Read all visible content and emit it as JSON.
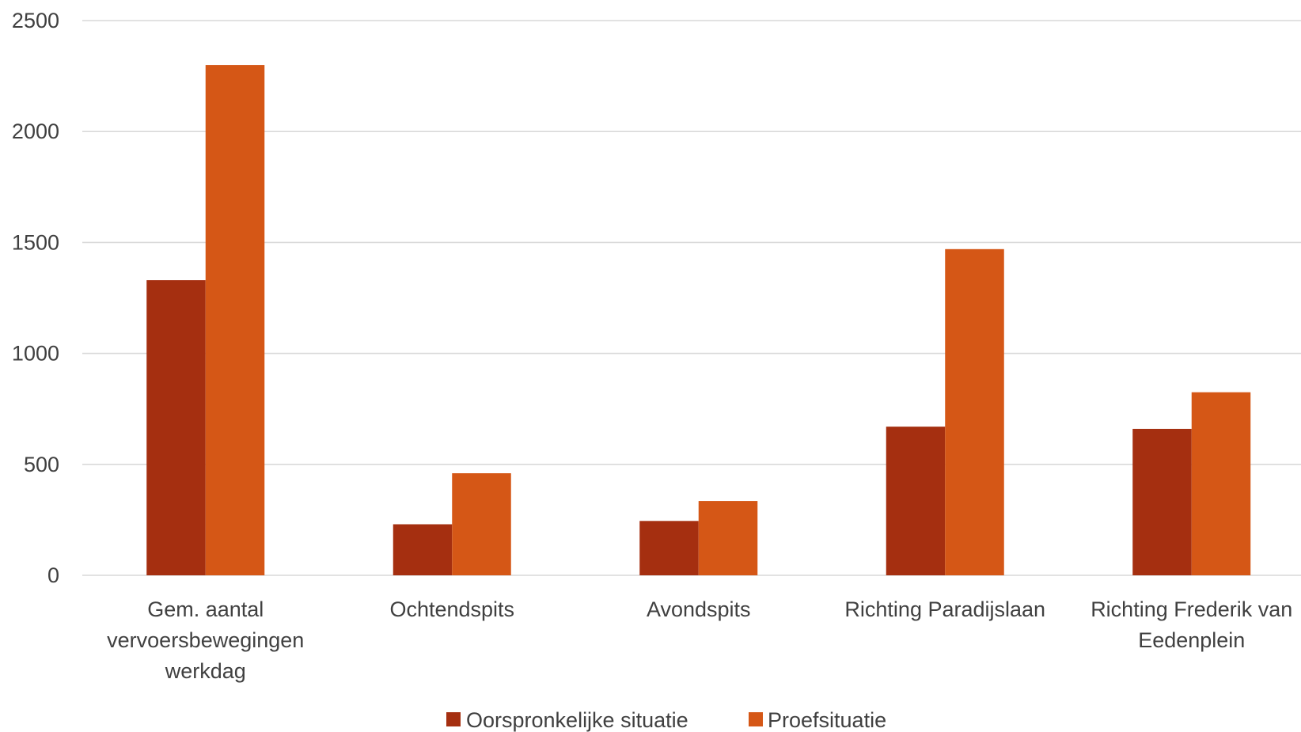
{
  "colors": {
    "series_1": "#a52f10",
    "series_2": "#d55716",
    "grid": "#d9d9d9",
    "text": "#404040"
  },
  "chart_data": {
    "type": "bar",
    "categories": [
      [
        "Gem. aantal",
        "vervoersbewegingen",
        "werkdag"
      ],
      [
        "Ochtendspits"
      ],
      [
        "Avondspits"
      ],
      [
        "Richting Paradijslaan"
      ],
      [
        "Richting Frederik van",
        "Eedenplein"
      ]
    ],
    "series": [
      {
        "name": "Oorspronkelijke situatie",
        "values": [
          1330,
          230,
          245,
          670,
          660
        ]
      },
      {
        "name": "Proefsituatie",
        "values": [
          2300,
          460,
          335,
          1470,
          825
        ]
      }
    ],
    "yticks": [
      "0",
      "500",
      "1000",
      "1500",
      "2000",
      "2500"
    ],
    "ylim": [
      0,
      2500
    ],
    "grid": true,
    "legend_position": "bottom",
    "title": "",
    "xlabel": "",
    "ylabel": ""
  }
}
